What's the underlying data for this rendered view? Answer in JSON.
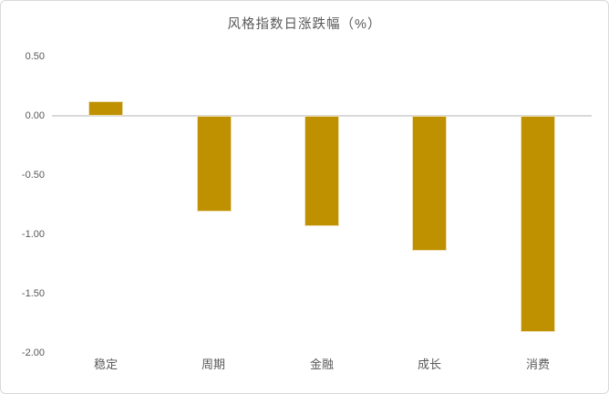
{
  "chart": {
    "title": "风格指数日涨跌幅（%）"
  },
  "chart_data": {
    "type": "bar",
    "title": "风格指数日涨跌幅（%）",
    "categories": [
      "稳定",
      "周期",
      "金融",
      "成长",
      "消费"
    ],
    "values": [
      0.12,
      -0.81,
      -0.93,
      -1.14,
      -1.82
    ],
    "xlabel": "",
    "ylabel": "",
    "ylim": [
      -2.0,
      0.5
    ],
    "y_ticks": [
      0.5,
      0.0,
      -0.5,
      -1.0,
      -1.5,
      -2.0
    ],
    "y_tick_labels": [
      "0.50",
      "0.00",
      "-0.50",
      "-1.00",
      "-1.50",
      "-2.00"
    ],
    "grid": false,
    "legend": "none",
    "bar_color": "#BF9000",
    "bar_border_color": "#ECDFB2",
    "zero_line_color": "#D9D9D9",
    "text_color": "#595959",
    "frame_border_color": "#D9D9D9",
    "background_color": "#FFFFFF"
  }
}
